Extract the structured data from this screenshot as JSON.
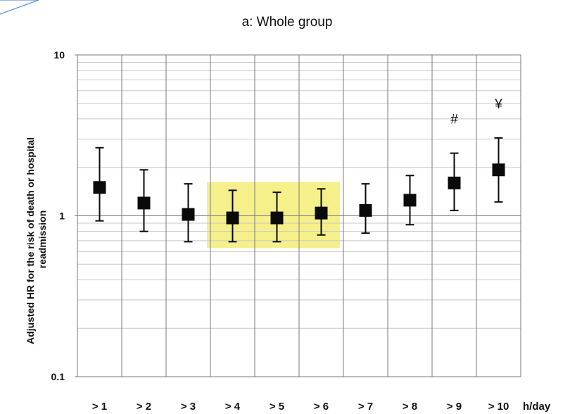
{
  "chart_data": {
    "type": "scatter",
    "subtype": "forest-plot-error-bars",
    "title": "a: Whole group",
    "ylabel_lines": [
      "Adjusted HR for the risk of death or hospital",
      "readmission"
    ],
    "xlabel": "",
    "x_unit_label": "h/day",
    "y_scale": "log",
    "ylim": [
      0.1,
      10
    ],
    "y_ticks": [
      {
        "value": 0.1,
        "label": "0.1"
      },
      {
        "value": 1,
        "label": "1"
      },
      {
        "value": 10,
        "label": "10"
      }
    ],
    "grid": true,
    "categories": [
      "> 1",
      "> 2",
      "> 3",
      "> 4",
      "> 5",
      "> 6",
      "> 7",
      "> 8",
      "> 9",
      "> 10"
    ],
    "points": [
      {
        "hr": 1.5,
        "lower": 0.93,
        "upper": 2.65,
        "annotation": ""
      },
      {
        "hr": 1.2,
        "lower": 0.8,
        "upper": 1.93,
        "annotation": ""
      },
      {
        "hr": 1.02,
        "lower": 0.69,
        "upper": 1.58,
        "annotation": ""
      },
      {
        "hr": 0.97,
        "lower": 0.69,
        "upper": 1.44,
        "annotation": ""
      },
      {
        "hr": 0.97,
        "lower": 0.69,
        "upper": 1.4,
        "annotation": ""
      },
      {
        "hr": 1.04,
        "lower": 0.76,
        "upper": 1.47,
        "annotation": ""
      },
      {
        "hr": 1.08,
        "lower": 0.78,
        "upper": 1.58,
        "annotation": ""
      },
      {
        "hr": 1.25,
        "lower": 0.88,
        "upper": 1.78,
        "annotation": ""
      },
      {
        "hr": 1.6,
        "lower": 1.08,
        "upper": 2.45,
        "annotation": "#"
      },
      {
        "hr": 1.93,
        "lower": 1.22,
        "upper": 3.05,
        "annotation": "¥"
      }
    ],
    "highlight": {
      "categories": [
        "> 4",
        "> 5",
        "> 6"
      ],
      "y_range": [
        0.63,
        1.62
      ],
      "color": "#f5f08a"
    }
  },
  "colors": {
    "marker": "#0a0a0a",
    "grid_major": "#7a7a7a",
    "grid_minor": "#c8c8c8",
    "corner_accent": "#5b8fd6"
  }
}
